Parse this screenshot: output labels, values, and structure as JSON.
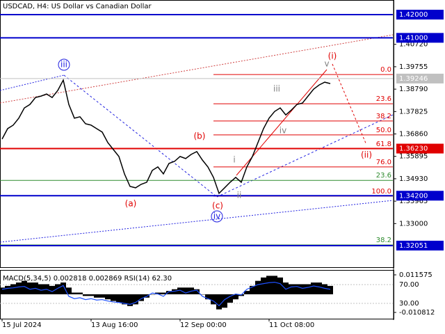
{
  "chart_data": [
    {
      "type": "line",
      "title": "USDCAD, H4:  US Dollar vs Canadian Dollar",
      "categories": [
        "15 Jul 2024",
        null,
        null,
        null,
        null,
        null,
        null,
        null,
        null,
        null,
        null,
        null,
        null,
        null,
        null,
        null,
        "13 Aug 16:00",
        null,
        null,
        null,
        null,
        null,
        null,
        null,
        null,
        null,
        null,
        null,
        null,
        null,
        null,
        null,
        "12 Sep 00:00",
        null,
        null,
        null,
        null,
        null,
        null,
        null,
        null,
        null,
        null,
        null,
        null,
        null,
        null,
        null,
        "11 Oct 08:00",
        null,
        null,
        null,
        null,
        null,
        null,
        null,
        null,
        null,
        null,
        null
      ],
      "values": [
        1.3664,
        1.3709,
        1.3724,
        1.3754,
        1.3798,
        1.3813,
        1.3843,
        1.3849,
        1.3858,
        1.3843,
        1.3873,
        1.3918,
        1.3813,
        1.3754,
        1.376,
        1.373,
        1.3724,
        1.3709,
        1.3694,
        1.3649,
        1.3619,
        1.3589,
        1.3514,
        1.346,
        1.3454,
        1.3469,
        1.3478,
        1.3529,
        1.3544,
        1.3514,
        1.3559,
        1.3568,
        1.3589,
        1.358,
        1.3598,
        1.361,
        1.3574,
        1.3544,
        1.3499,
        1.343,
        1.3454,
        1.3478,
        1.3499,
        1.3478,
        1.3544,
        1.3589,
        1.3649,
        1.3709,
        1.3754,
        1.3783,
        1.3798,
        1.3768,
        1.3789,
        1.3813,
        1.3819,
        1.3849,
        1.3879,
        1.3897,
        1.3909,
        1.3903
      ],
      "color": "#000000",
      "ylim": [
        1.3175,
        1.4257
      ],
      "yticks": [
        {
          "value": 1.4072,
          "label": "1.40720"
        },
        {
          "value": 1.39755,
          "label": "1.39755"
        },
        {
          "value": 1.3879,
          "label": "1.38790"
        },
        {
          "value": 1.37825,
          "label": "1.37825"
        },
        {
          "value": 1.3686,
          "label": "1.36860"
        },
        {
          "value": 1.35895,
          "label": "1.35895"
        },
        {
          "value": 1.3493,
          "label": "1.34930"
        },
        {
          "value": 1.33965,
          "label": "1.33965"
        },
        {
          "value": 1.33,
          "label": "1.33000"
        }
      ],
      "levels": [
        {
          "value": 1.42,
          "label": "1.42000",
          "color": "#0000cc"
        },
        {
          "value": 1.41,
          "label": "1.41000",
          "color": "#0000cc"
        },
        {
          "value": 1.39246,
          "label": "1.39246",
          "color": "#c0c0c0"
        },
        {
          "value": 1.3623,
          "label": "1.36230",
          "color": "#e00000"
        },
        {
          "value": 1.342,
          "label": "1.34200",
          "color": "#0000cc"
        },
        {
          "value": 1.32051,
          "label": "1.32051",
          "color": "#0000cc"
        }
      ],
      "fibonacci": [
        {
          "level": "0.0",
          "price": 1.3942,
          "color": "#e00000"
        },
        {
          "level": "23.6",
          "price": 1.3816,
          "color": "#e00000"
        },
        {
          "level": "38.2",
          "price": 1.3742,
          "color": "#e00000"
        },
        {
          "level": "50.0",
          "price": 1.3682,
          "color": "#e00000"
        },
        {
          "level": "61.8",
          "price": 1.3622,
          "color": "#e00000"
        },
        {
          "level": "76.0",
          "price": 1.3544,
          "color": "#e00000"
        },
        {
          "level": "100.0",
          "price": 1.3418,
          "color": "#e00000"
        },
        {
          "level": "23.6",
          "price": 1.3486,
          "color": "#2e8b2e"
        },
        {
          "level": "38.2",
          "price": 1.3208,
          "color": "#2e8b2e"
        }
      ],
      "waves": [
        {
          "text": "iii",
          "color": "#2020e0"
        },
        {
          "text": "(a)",
          "color": "#e00000"
        },
        {
          "text": "(b)",
          "color": "#e00000"
        },
        {
          "text": "(c)",
          "color": "#e00000"
        },
        {
          "text": "iv",
          "color": "#2020e0"
        },
        {
          "text": "i",
          "color": "#808080"
        },
        {
          "text": "ii",
          "color": "#808080"
        },
        {
          "text": "iii",
          "color": "#808080"
        },
        {
          "text": "iv",
          "color": "#808080"
        },
        {
          "text": "v",
          "color": "#808080"
        },
        {
          "text": "(i)",
          "color": "#e00000"
        },
        {
          "text": "(ii)",
          "color": "#e00000"
        }
      ]
    },
    {
      "type": "bar",
      "title": "MACD(5,34,5) 0.002818 0.002869 RSI(14) 62.30",
      "series": [
        {
          "color": "#000000",
          "values": [
            0.004,
            0.005,
            0.006,
            0.007,
            0.008,
            0.007,
            0.007,
            0.006,
            0.006,
            0.005,
            0.006,
            0.007,
            0.004,
            0.001,
            0.001,
            -0.001,
            -0.001,
            -0.002,
            -0.002,
            -0.003,
            -0.004,
            -0.005,
            -0.006,
            -0.007,
            -0.006,
            -0.004,
            -0.002,
            0.0,
            0.001,
            0.001,
            0.002,
            0.003,
            0.004,
            0.004,
            0.004,
            0.003,
            0.0,
            -0.003,
            -0.006,
            -0.009,
            -0.008,
            -0.005,
            -0.003,
            -0.001,
            0.002,
            0.005,
            0.008,
            0.01,
            0.011,
            0.011,
            0.01,
            0.007,
            0.006,
            0.006,
            0.006,
            0.006,
            0.007,
            0.007,
            0.006,
            0.005
          ]
        },
        {
          "color": "#1e50ff",
          "axis": "y2",
          "values": [
            60,
            62,
            63,
            65,
            66,
            60,
            62,
            58,
            60,
            55,
            62,
            68,
            45,
            40,
            42,
            38,
            40,
            37,
            38,
            35,
            33,
            32,
            30,
            28,
            32,
            40,
            45,
            52,
            50,
            45,
            55,
            56,
            58,
            52,
            56,
            58,
            45,
            40,
            35,
            25,
            38,
            45,
            50,
            48,
            60,
            65,
            70,
            72,
            74,
            75,
            72,
            60,
            65,
            66,
            62,
            64,
            67,
            65,
            62,
            60
          ]
        }
      ],
      "ylim": [
        -0.010812,
        0.011575
      ],
      "yticks": [
        0.011575,
        -0.010812
      ],
      "y2lim": [
        10.7,
        90.7
      ],
      "y2ticks": [
        {
          "value": 70,
          "label": "70.00"
        },
        {
          "value": 30,
          "label": "30.00"
        }
      ]
    }
  ]
}
